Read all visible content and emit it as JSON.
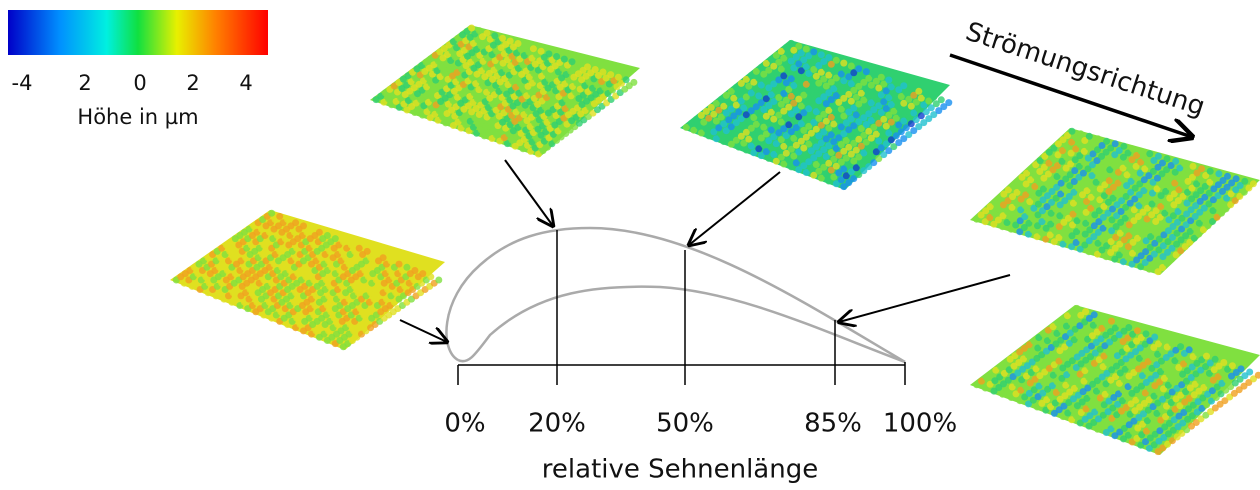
{
  "colorbar": {
    "tick_labels": [
      "-4",
      "2",
      "0",
      "2",
      "4"
    ],
    "title": "Höhe in µm"
  },
  "flow_label": "Strömungsrichtung",
  "positions": [
    "0%",
    "20%",
    "50%",
    "85%",
    "100%"
  ],
  "axis_label": "relative Sehnenlänge"
}
